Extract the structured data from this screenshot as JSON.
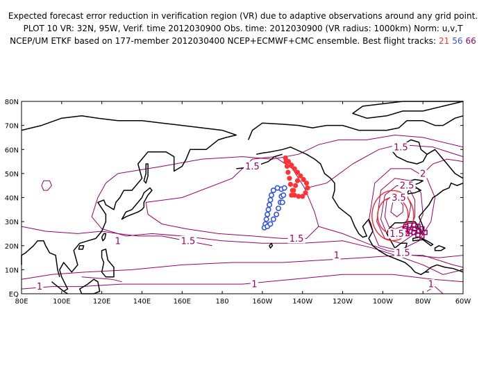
{
  "header": {
    "line1": "Expected forecast error reduction in verification region (VR) due to adaptive observations around any grid point.",
    "line2": "PLOT 10 VR: 32N, 95W, Verif. time 2012030900 Obs. time: 2012030900 (VR radius: 1000km) Norm: u,v,T",
    "line3": "NCEP/UM ETKF based on 177-member 2012030400 NCEP+ECMWF+CMC ensemble. Best flight tracks:",
    "tracks": [
      {
        "id": "21",
        "color": "#ff3333"
      },
      {
        "id": "56",
        "color": "#3355dd"
      },
      {
        "id": "66",
        "color": "#990066"
      }
    ]
  },
  "map": {
    "lon_range": [
      80,
      300
    ],
    "lat_range": [
      0,
      80
    ],
    "x_ticks": [
      {
        "lon": 80,
        "label": "80E"
      },
      {
        "lon": 100,
        "label": "100E"
      },
      {
        "lon": 120,
        "label": "120E"
      },
      {
        "lon": 140,
        "label": "140E"
      },
      {
        "lon": 160,
        "label": "160E"
      },
      {
        "lon": 180,
        "label": "180"
      },
      {
        "lon": 200,
        "label": "160W"
      },
      {
        "lon": 220,
        "label": "140W"
      },
      {
        "lon": 240,
        "label": "120W"
      },
      {
        "lon": 260,
        "label": "100W"
      },
      {
        "lon": 280,
        "label": "80W"
      },
      {
        "lon": 300,
        "label": "60W"
      }
    ],
    "y_ticks": [
      {
        "lat": 0,
        "label": "EQ"
      },
      {
        "lat": 10,
        "label": "10N"
      },
      {
        "lat": 20,
        "label": "20N"
      },
      {
        "lat": 30,
        "label": "30N"
      },
      {
        "lat": 40,
        "label": "40N"
      },
      {
        "lat": 50,
        "label": "50N"
      },
      {
        "lat": 60,
        "label": "60N"
      },
      {
        "lat": 70,
        "label": "70N"
      },
      {
        "lat": 80,
        "label": "80N"
      }
    ],
    "contour_color": "#990066",
    "vr_color": "#ff2222",
    "contour_labels": [
      {
        "text": "1.5",
        "lon": 195,
        "lat": 53
      },
      {
        "text": "1.5",
        "lon": 163,
        "lat": 22
      },
      {
        "text": "1.5",
        "lon": 217,
        "lat": 23
      },
      {
        "text": "1.5",
        "lon": 269,
        "lat": 61
      },
      {
        "text": "1",
        "lon": 128,
        "lat": 22
      },
      {
        "text": "1",
        "lon": 89,
        "lat": 3
      },
      {
        "text": "1",
        "lon": 196,
        "lat": 4
      },
      {
        "text": "1",
        "lon": 237,
        "lat": 16
      },
      {
        "text": "1",
        "lon": 284,
        "lat": 4
      },
      {
        "text": "2",
        "lon": 280,
        "lat": 50
      },
      {
        "text": "2.5",
        "lon": 272,
        "lat": 45
      },
      {
        "text": "3.5",
        "lon": 268,
        "lat": 40
      },
      {
        "text": "1.5",
        "lon": 270,
        "lat": 17
      },
      {
        "text": "1.5",
        "lon": 267,
        "lat": 25
      }
    ],
    "track_red": [
      [
        211.5,
        56.5
      ],
      [
        213,
        55
      ],
      [
        214.5,
        53.5
      ],
      [
        216,
        52
      ],
      [
        217.5,
        50.5
      ],
      [
        219,
        49
      ],
      [
        220.5,
        47.5
      ],
      [
        222,
        46
      ],
      [
        222.5,
        44
      ],
      [
        221.5,
        42
      ],
      [
        220,
        40.5
      ],
      [
        218,
        40.5
      ],
      [
        216,
        41
      ],
      [
        215,
        43
      ],
      [
        214,
        45.5
      ],
      [
        213.5,
        48
      ],
      [
        212.8,
        50.5
      ],
      [
        212.3,
        53
      ],
      [
        211.8,
        55
      ],
      [
        214.5,
        41
      ],
      [
        215.5,
        43
      ],
      [
        216.5,
        45
      ],
      [
        217.5,
        47
      ]
    ],
    "track_blue": [
      [
        209.5,
        43.5
      ],
      [
        207.5,
        44
      ],
      [
        205.5,
        43
      ],
      [
        204.5,
        41
      ],
      [
        204,
        39
      ],
      [
        203.5,
        37
      ],
      [
        203,
        35
      ],
      [
        202.5,
        33
      ],
      [
        202,
        31
      ],
      [
        201.5,
        29
      ],
      [
        201,
        27.5
      ],
      [
        202.5,
        28
      ],
      [
        204,
        29
      ],
      [
        205.5,
        31
      ],
      [
        207,
        33
      ],
      [
        208,
        35.5
      ],
      [
        209,
        38
      ],
      [
        209.5,
        40.5
      ],
      [
        211,
        44
      ],
      [
        210.5,
        41
      ],
      [
        210,
        38
      ]
    ],
    "track_purple": [
      [
        271.5,
        28
      ],
      [
        273.5,
        28.5
      ],
      [
        275.5,
        28.5
      ],
      [
        277.5,
        28
      ],
      [
        279.5,
        27
      ],
      [
        281,
        25.5
      ],
      [
        279.5,
        24
      ],
      [
        277.5,
        24.5
      ],
      [
        275.5,
        25.5
      ],
      [
        273.5,
        26
      ],
      [
        272,
        25
      ],
      [
        271,
        27
      ],
      [
        276,
        27
      ],
      [
        278,
        26
      ]
    ]
  }
}
